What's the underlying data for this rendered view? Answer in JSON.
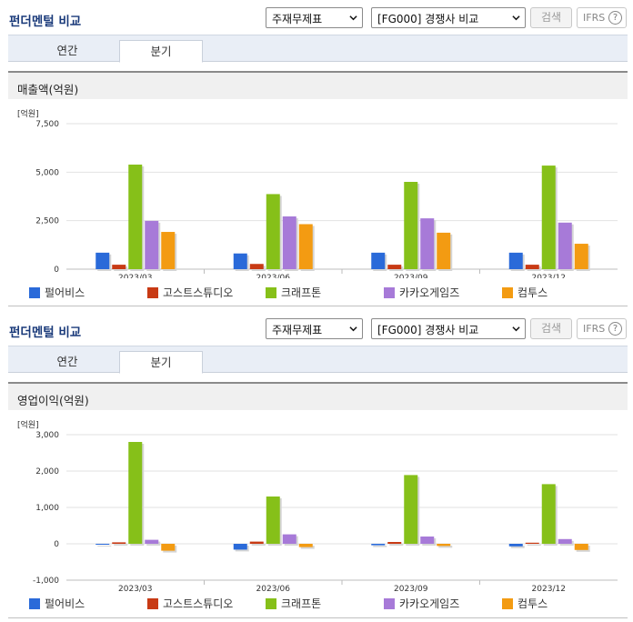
{
  "colors": {
    "title": "#1a3a7a",
    "series": [
      "#2a6ad9",
      "#c83a14",
      "#86c019",
      "#a77ad8",
      "#f39b12"
    ]
  },
  "panels": [
    {
      "title": "펀더멘털 비교",
      "select1": "주재무제표",
      "select2": "[FG000] 경쟁사 비교",
      "search_label": "검색",
      "ifrs_label": "IFRS",
      "help_label": "?",
      "tabs": [
        "연간",
        "분기"
      ],
      "active_tab": "분기",
      "chart_title": "매출액(억원)",
      "unit": "[억원]"
    },
    {
      "title": "펀더멘털 비교",
      "select1": "주재무제표",
      "select2": "[FG000] 경쟁사 비교",
      "search_label": "검색",
      "ifrs_label": "IFRS",
      "help_label": "?",
      "tabs": [
        "연간",
        "분기"
      ],
      "active_tab": "분기",
      "chart_title": "영업이익(억원)",
      "unit": "[억원]"
    }
  ],
  "chart_data": [
    {
      "type": "bar",
      "title": "매출액(억원)",
      "ylabel": "[억원]",
      "categories": [
        "2023/03",
        "2023/06",
        "2023/09",
        "2023/12"
      ],
      "ylim": [
        0,
        7500
      ],
      "yticks": [
        0,
        2500,
        5000,
        7500
      ],
      "ytick_labels": [
        "0",
        "2,500",
        "5,000",
        "7,500"
      ],
      "grid": true,
      "legend_position": "bottom",
      "series": [
        {
          "name": "펄어비스",
          "values": [
            850,
            810,
            850,
            850
          ]
        },
        {
          "name": "고스트스튜디오",
          "values": [
            230,
            270,
            230,
            230
          ]
        },
        {
          "name": "크래프톤",
          "values": [
            5390,
            3870,
            4500,
            5340
          ]
        },
        {
          "name": "카카오게임즈",
          "values": [
            2490,
            2720,
            2620,
            2400
          ]
        },
        {
          "name": "컴투스",
          "values": [
            1920,
            2320,
            1880,
            1310
          ]
        }
      ]
    },
    {
      "type": "bar",
      "title": "영업이익(억원)",
      "ylabel": "[억원]",
      "categories": [
        "2023/03",
        "2023/06",
        "2023/09",
        "2023/12"
      ],
      "ylim": [
        -1000,
        3000
      ],
      "yticks": [
        -1000,
        0,
        1000,
        2000,
        3000
      ],
      "ytick_labels": [
        "-1,000",
        "0",
        "1,000",
        "2,000",
        "3,000"
      ],
      "grid": true,
      "legend_position": "bottom",
      "series": [
        {
          "name": "펄어비스",
          "values": [
            -20,
            -160,
            -40,
            -70
          ]
        },
        {
          "name": "고스트스튜디오",
          "values": [
            40,
            60,
            50,
            30
          ]
        },
        {
          "name": "크래프톤",
          "values": [
            2800,
            1300,
            1890,
            1640
          ]
        },
        {
          "name": "카카오게임즈",
          "values": [
            110,
            260,
            200,
            130
          ]
        },
        {
          "name": "컴투스",
          "values": [
            -190,
            -90,
            -60,
            -170
          ]
        }
      ]
    }
  ]
}
